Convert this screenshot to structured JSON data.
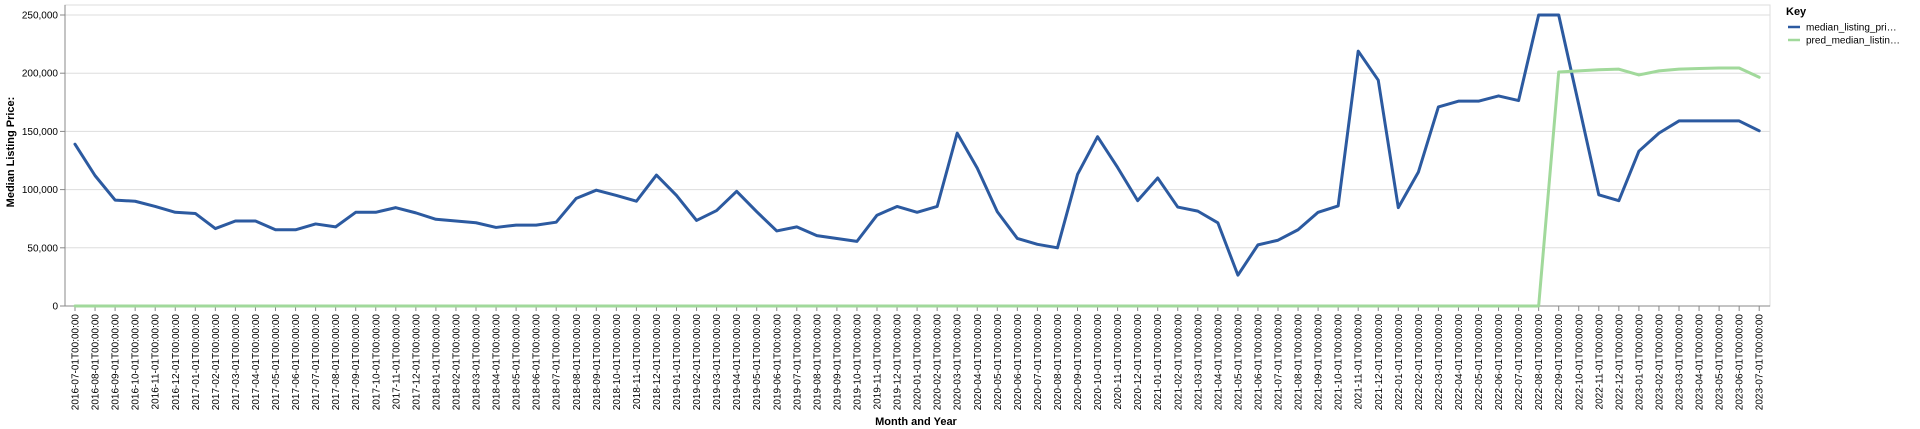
{
  "chart_data": {
    "type": "line",
    "xlabel": "Month and Year",
    "ylabel": "Median Listing Price:",
    "ylim": [
      0,
      250000
    ],
    "yticks": [
      "0",
      "50,000",
      "100,000",
      "150,000",
      "200,000",
      "250,000"
    ],
    "ytick_values": [
      0,
      50000,
      100000,
      150000,
      200000,
      250000
    ],
    "grid": true,
    "legend": {
      "title": "Key",
      "placement": "top-right"
    },
    "x": [
      "2016-07-01T00:00:00",
      "2016-08-01T00:00:00",
      "2016-09-01T00:00:00",
      "2016-10-01T00:00:00",
      "2016-11-01T00:00:00",
      "2016-12-01T00:00:00",
      "2017-01-01T00:00:00",
      "2017-02-01T00:00:00",
      "2017-03-01T00:00:00",
      "2017-04-01T00:00:00",
      "2017-05-01T00:00:00",
      "2017-06-01T00:00:00",
      "2017-07-01T00:00:00",
      "2017-08-01T00:00:00",
      "2017-09-01T00:00:00",
      "2017-10-01T00:00:00",
      "2017-11-01T00:00:00",
      "2017-12-01T00:00:00",
      "2018-01-01T00:00:00",
      "2018-02-01T00:00:00",
      "2018-03-01T00:00:00",
      "2018-04-01T00:00:00",
      "2018-05-01T00:00:00",
      "2018-06-01T00:00:00",
      "2018-07-01T00:00:00",
      "2018-08-01T00:00:00",
      "2018-09-01T00:00:00",
      "2018-10-01T00:00:00",
      "2018-11-01T00:00:00",
      "2018-12-01T00:00:00",
      "2019-01-01T00:00:00",
      "2019-02-01T00:00:00",
      "2019-03-01T00:00:00",
      "2019-04-01T00:00:00",
      "2019-05-01T00:00:00",
      "2019-06-01T00:00:00",
      "2019-07-01T00:00:00",
      "2019-08-01T00:00:00",
      "2019-09-01T00:00:00",
      "2019-10-01T00:00:00",
      "2019-11-01T00:00:00",
      "2019-12-01T00:00:00",
      "2020-01-01T00:00:00",
      "2020-02-01T00:00:00",
      "2020-03-01T00:00:00",
      "2020-04-01T00:00:00",
      "2020-05-01T00:00:00",
      "2020-06-01T00:00:00",
      "2020-07-01T00:00:00",
      "2020-08-01T00:00:00",
      "2020-09-01T00:00:00",
      "2020-10-01T00:00:00",
      "2020-11-01T00:00:00",
      "2020-12-01T00:00:00",
      "2021-01-01T00:00:00",
      "2021-02-01T00:00:00",
      "2021-03-01T00:00:00",
      "2021-04-01T00:00:00",
      "2021-05-01T00:00:00",
      "2021-06-01T00:00:00",
      "2021-07-01T00:00:00",
      "2021-08-01T00:00:00",
      "2021-09-01T00:00:00",
      "2021-10-01T00:00:00",
      "2021-11-01T00:00:00",
      "2021-12-01T00:00:00",
      "2022-01-01T00:00:00",
      "2022-02-01T00:00:00",
      "2022-03-01T00:00:00",
      "2022-04-01T00:00:00",
      "2022-05-01T00:00:00",
      "2022-06-01T00:00:00",
      "2022-07-01T00:00:00",
      "2022-08-01T00:00:00",
      "2022-09-01T00:00:00",
      "2022-10-01T00:00:00",
      "2022-11-01T00:00:00",
      "2022-12-01T00:00:00",
      "2023-01-01T00:00:00",
      "2023-02-01T00:00:00",
      "2023-03-01T00:00:00",
      "2023-04-01T00:00:00",
      "2023-05-01T00:00:00",
      "2023-06-01T00:00:00",
      "2023-07-01T00:00:00"
    ],
    "series": [
      {
        "name": "median_listing_pri…",
        "color": "#2c5aa0",
        "values": [
          139000,
          112000,
          91000,
          90000,
          85500,
          80500,
          79500,
          66500,
          73000,
          73000,
          65500,
          65500,
          70500,
          68000,
          80500,
          80500,
          84500,
          80000,
          74500,
          73000,
          71500,
          67500,
          69500,
          69500,
          72000,
          92500,
          99500,
          95000,
          90000,
          112500,
          95000,
          73500,
          82000,
          98500,
          81000,
          64500,
          68000,
          60500,
          58000,
          55500,
          78000,
          85500,
          80500,
          85500,
          148500,
          118500,
          81000,
          58000,
          53000,
          50000,
          113000,
          145500,
          119000,
          90500,
          110000,
          85000,
          81500,
          71500,
          26500,
          52500,
          56500,
          65500,
          80500,
          86000,
          219000,
          194000,
          84500,
          115000,
          171000,
          176000,
          176000,
          180500,
          176500,
          250000,
          250000,
          173000,
          95500,
          90500,
          133000,
          148500,
          159000,
          159000,
          159000,
          159000,
          150500
        ]
      },
      {
        "name": "pred_median_listin…",
        "color": "#a1d99b",
        "values": [
          0,
          0,
          0,
          0,
          0,
          0,
          0,
          0,
          0,
          0,
          0,
          0,
          0,
          0,
          0,
          0,
          0,
          0,
          0,
          0,
          0,
          0,
          0,
          0,
          0,
          0,
          0,
          0,
          0,
          0,
          0,
          0,
          0,
          0,
          0,
          0,
          0,
          0,
          0,
          0,
          0,
          0,
          0,
          0,
          0,
          0,
          0,
          0,
          0,
          0,
          0,
          0,
          0,
          0,
          0,
          0,
          0,
          0,
          0,
          0,
          0,
          0,
          0,
          0,
          0,
          0,
          0,
          0,
          0,
          0,
          0,
          0,
          0,
          0,
          201000,
          202000,
          203000,
          203500,
          198500,
          202000,
          203500,
          204000,
          204500,
          204500,
          196500
        ]
      }
    ]
  }
}
